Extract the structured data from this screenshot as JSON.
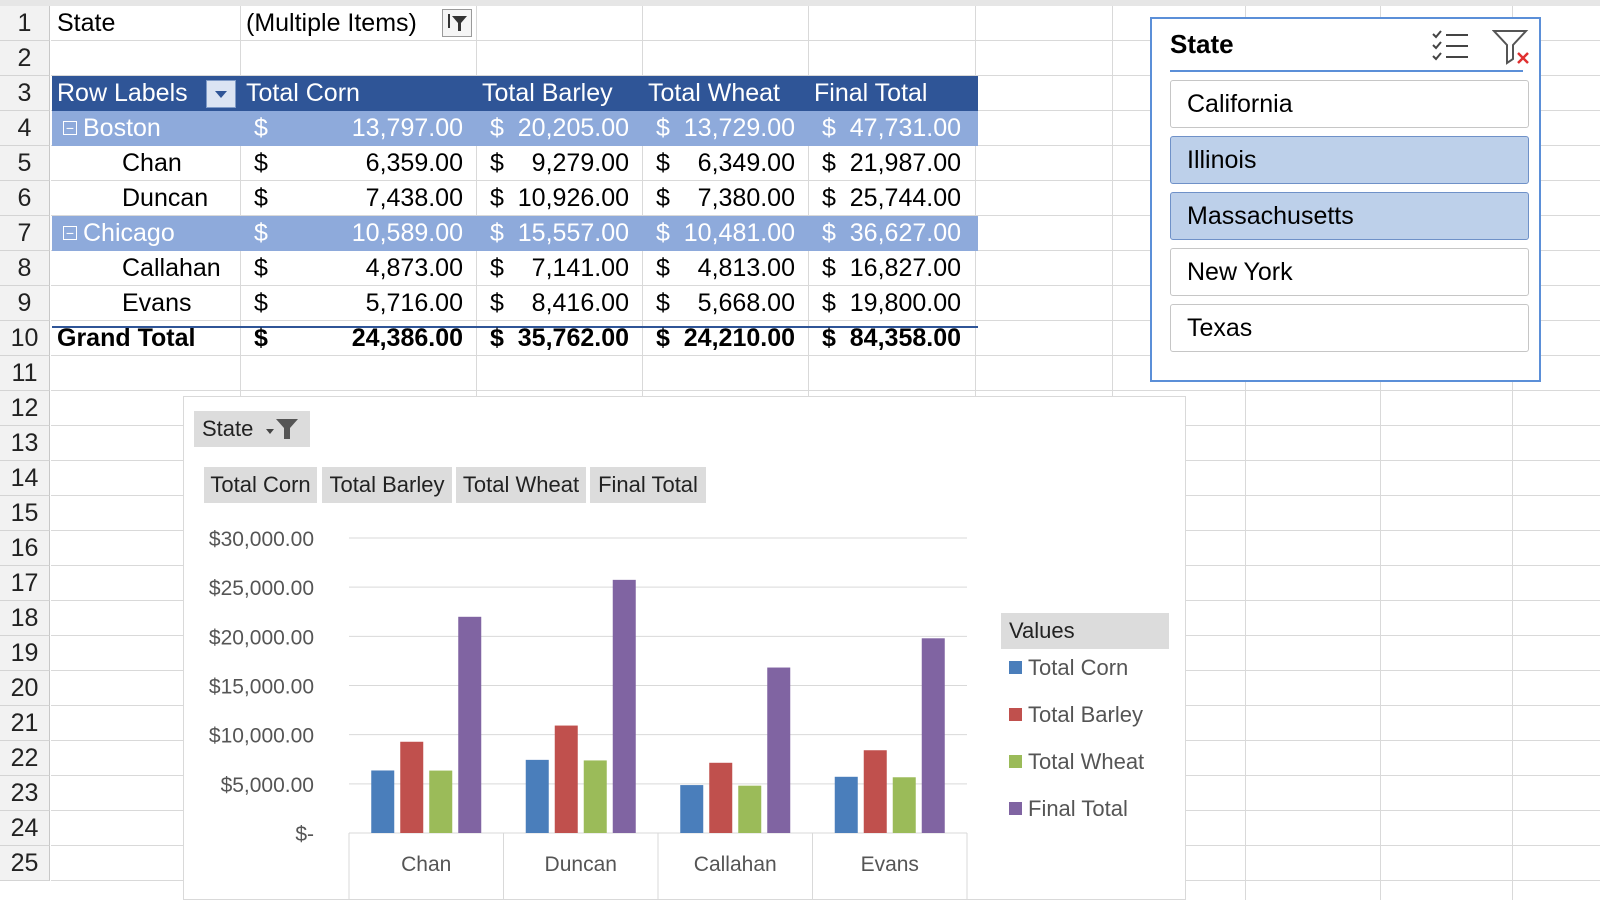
{
  "sheet": {
    "row_numbers": [
      "1",
      "2",
      "3",
      "4",
      "5",
      "6",
      "7",
      "8",
      "9",
      "10",
      "11",
      "12",
      "13",
      "14",
      "15",
      "16",
      "17",
      "18",
      "19",
      "20",
      "21",
      "22",
      "23",
      "24",
      "25"
    ]
  },
  "pivot": {
    "filter_label": "State",
    "filter_value": "(Multiple Items)",
    "headers": {
      "row_labels": "Row Labels",
      "corn": "Total Corn",
      "barley": "Total Barley",
      "wheat": "Total Wheat",
      "final": "Final Total"
    },
    "currency": "$",
    "rows": [
      {
        "label": "Boston",
        "type": "group",
        "corn": "13,797.00",
        "barley": "20,205.00",
        "wheat": "13,729.00",
        "final": "47,731.00"
      },
      {
        "label": "Chan",
        "type": "item",
        "corn": "6,359.00",
        "barley": "9,279.00",
        "wheat": "6,349.00",
        "final": "21,987.00"
      },
      {
        "label": "Duncan",
        "type": "item",
        "corn": "7,438.00",
        "barley": "10,926.00",
        "wheat": "7,380.00",
        "final": "25,744.00"
      },
      {
        "label": "Chicago",
        "type": "group",
        "corn": "10,589.00",
        "barley": "15,557.00",
        "wheat": "10,481.00",
        "final": "36,627.00"
      },
      {
        "label": "Callahan",
        "type": "item",
        "corn": "4,873.00",
        "barley": "7,141.00",
        "wheat": "4,813.00",
        "final": "16,827.00"
      },
      {
        "label": "Evans",
        "type": "item",
        "corn": "5,716.00",
        "barley": "8,416.00",
        "wheat": "5,668.00",
        "final": "19,800.00"
      }
    ],
    "grand_total": {
      "label": "Grand Total",
      "corn": "24,386.00",
      "barley": "35,762.00",
      "wheat": "24,210.00",
      "final": "84,358.00"
    }
  },
  "slicer": {
    "title": "State",
    "items": [
      {
        "label": "California",
        "selected": false
      },
      {
        "label": "Illinois",
        "selected": true
      },
      {
        "label": "Massachusetts",
        "selected": true
      },
      {
        "label": "New York",
        "selected": false
      },
      {
        "label": "Texas",
        "selected": false
      }
    ],
    "icons": [
      "multi-select-icon",
      "clear-filter-icon"
    ]
  },
  "chart": {
    "state_button": "State",
    "value_buttons": [
      "Total Corn",
      "Total Barley",
      "Total Wheat",
      "Final Total"
    ],
    "legend_title": "Values"
  },
  "chart_data": {
    "type": "bar",
    "categories": [
      "Chan",
      "Duncan",
      "Callahan",
      "Evans"
    ],
    "series": [
      {
        "name": "Total Corn",
        "color": "#4a7ebb",
        "values": [
          6359,
          7438,
          4873,
          5716
        ]
      },
      {
        "name": "Total Barley",
        "color": "#c0504d",
        "values": [
          9279,
          10926,
          7141,
          8416
        ]
      },
      {
        "name": "Total Wheat",
        "color": "#9bbb59",
        "values": [
          6349,
          7380,
          4813,
          5668
        ]
      },
      {
        "name": "Final Total",
        "color": "#8064a2",
        "values": [
          21987,
          25744,
          16827,
          19800
        ]
      }
    ],
    "yticks": [
      "$-",
      "$5,000.00",
      "$10,000.00",
      "$15,000.00",
      "$20,000.00",
      "$25,000.00",
      "$30,000.00"
    ],
    "ylim": [
      0,
      30000
    ],
    "grid": true,
    "legend": "right"
  },
  "colors": {
    "pivot_header": "#2f5597",
    "pivot_band": "#8eaadb",
    "slicer_selected": "#bdd0ea",
    "slicer_border": "#5b8fd8"
  }
}
